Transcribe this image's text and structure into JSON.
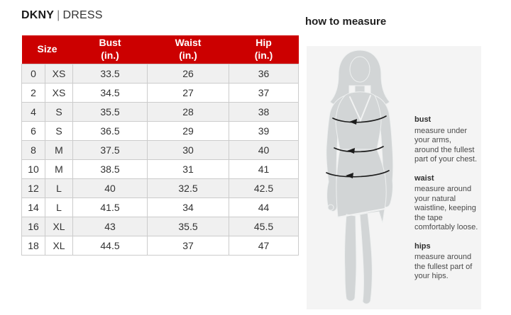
{
  "page": {
    "brand": "DKNY",
    "separator": "|",
    "product": "DRESS"
  },
  "size_chart": {
    "header": {
      "size": "Size",
      "bust": "Bust\n(in.)",
      "waist": "Waist\n(in.)",
      "hip": "Hip\n(in.)"
    },
    "rows": [
      {
        "size_num": "0",
        "size_alpha": "XS",
        "bust": "33.5",
        "waist": "26",
        "hip": "36"
      },
      {
        "size_num": "2",
        "size_alpha": "XS",
        "bust": "34.5",
        "waist": "27",
        "hip": "37"
      },
      {
        "size_num": "4",
        "size_alpha": "S",
        "bust": "35.5",
        "waist": "28",
        "hip": "38"
      },
      {
        "size_num": "6",
        "size_alpha": "S",
        "bust": "36.5",
        "waist": "29",
        "hip": "39"
      },
      {
        "size_num": "8",
        "size_alpha": "M",
        "bust": "37.5",
        "waist": "30",
        "hip": "40"
      },
      {
        "size_num": "10",
        "size_alpha": "M",
        "bust": "38.5",
        "waist": "31",
        "hip": "41"
      },
      {
        "size_num": "12",
        "size_alpha": "L",
        "bust": "40",
        "waist": "32.5",
        "hip": "42.5"
      },
      {
        "size_num": "14",
        "size_alpha": "L",
        "bust": "41.5",
        "waist": "34",
        "hip": "44"
      },
      {
        "size_num": "16",
        "size_alpha": "XL",
        "bust": "43",
        "waist": "35.5",
        "hip": "45.5"
      },
      {
        "size_num": "18",
        "size_alpha": "XL",
        "bust": "44.5",
        "waist": "37",
        "hip": "47"
      }
    ]
  },
  "how_to_measure": {
    "heading": "how to measure",
    "figure": "female-silhouette-with-bust-waist-hip-measurement-arrows",
    "sections": [
      {
        "label": "bust",
        "text": "measure under\nyour arms,\naround the fullest\npart of your chest."
      },
      {
        "label": "waist",
        "text": "measure around\nyour natural\nwaistline, keeping\nthe tape\ncomfortably loose."
      },
      {
        "label": "hips",
        "text": "measure around\nthe fullest part of\nyour hips."
      }
    ]
  },
  "colors": {
    "header_bg": "#cc0000",
    "header_text": "#ffffff",
    "row_alt_bg": "#f0f0f0",
    "table_border": "#cccccc",
    "table_text": "#333333",
    "panel_bg": "#f4f4f4",
    "silhouette": "#d2d5d6",
    "arrow": "#1c1c1c"
  }
}
